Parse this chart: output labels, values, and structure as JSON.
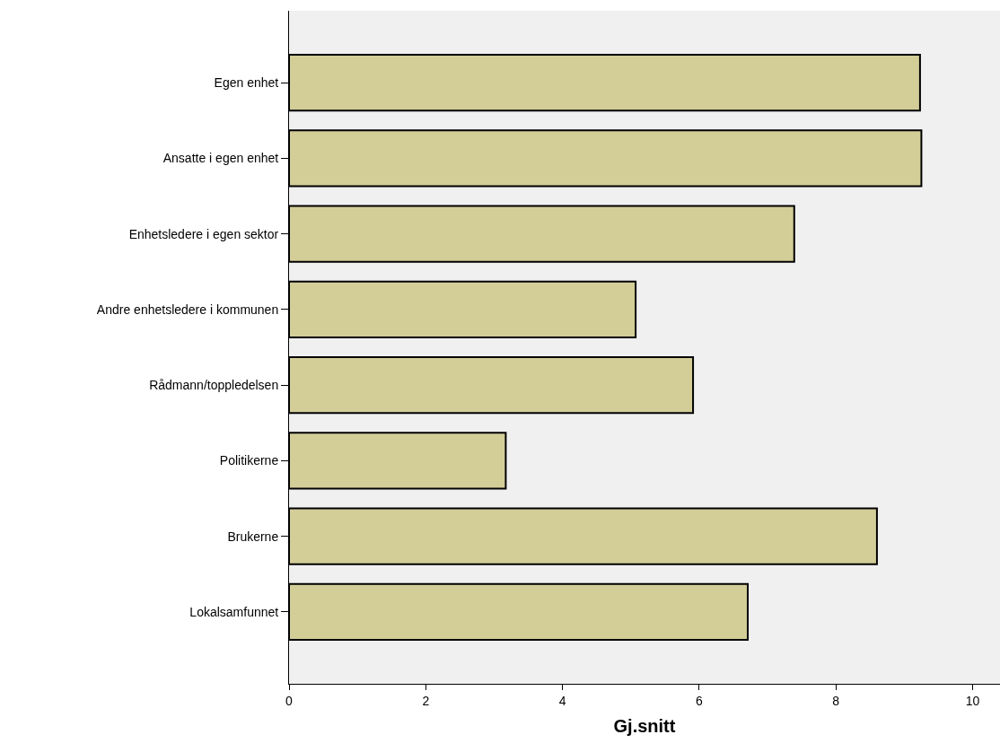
{
  "chart_data": {
    "type": "bar",
    "orientation": "horizontal",
    "xlabel": "Gj.snitt",
    "categories": [
      "Egen enhet",
      "Ansatte i egen enhet",
      "Enhetsledere i egen sektor",
      "Andre enhetsledere i kommunen",
      "Rådmann/toppledelsen",
      "Politikerne",
      "Brukerne",
      "Lokalsamfunnet"
    ],
    "values": [
      9.23,
      9.25,
      7.39,
      5.07,
      5.91,
      3.17,
      8.6,
      6.71
    ],
    "color": "#d3cd98",
    "xlim": [
      0,
      10.4
    ],
    "xticks": [
      0,
      2,
      4,
      6,
      8,
      10
    ]
  }
}
